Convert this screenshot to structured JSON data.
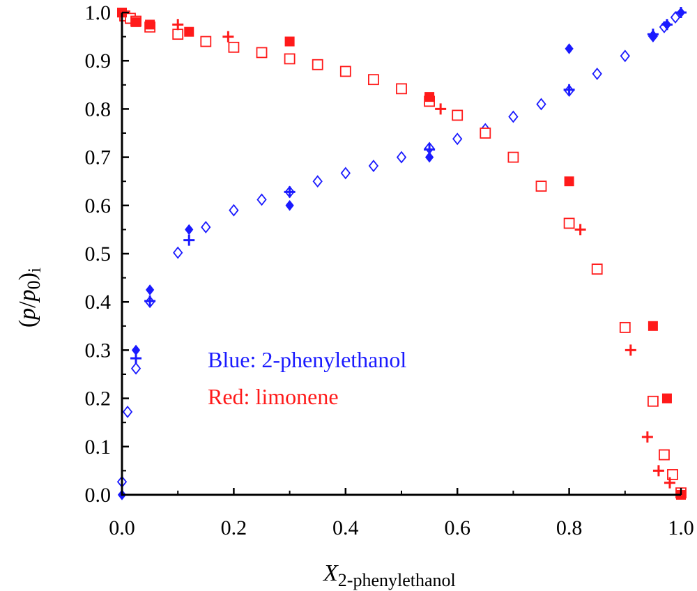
{
  "chart_data": {
    "type": "scatter",
    "xlabel": {
      "main": "X",
      "sub": "2-phenylethanol"
    },
    "ylabel": {
      "pre": "(",
      "p": "p",
      "slash": "/",
      "p0": "p",
      "zero": "0",
      "post": ")",
      "sub": "i"
    },
    "xlim": [
      0,
      1
    ],
    "ylim": [
      0,
      1
    ],
    "xticks": [
      "0.0",
      "0.2",
      "0.4",
      "0.6",
      "0.8",
      "1.0"
    ],
    "yticks": [
      "0.0",
      "0.1",
      "0.2",
      "0.3",
      "0.4",
      "0.5",
      "0.6",
      "0.7",
      "0.8",
      "0.9",
      "1.0"
    ],
    "grid": false,
    "legend": {
      "position": "center-left",
      "entries": [
        {
          "text": "Blue: 2-phenylethanol",
          "color": "#1a1aff"
        },
        {
          "text": "Red: limonene",
          "color": "#ff1a1a"
        }
      ]
    },
    "colors": {
      "blue": "#1a1aff",
      "red": "#ff1a1a",
      "axis": "#000000"
    },
    "series": [
      {
        "component": "2-phenylethanol",
        "color": "#1a1aff",
        "marker": "diamond-open",
        "points": [
          [
            0.0,
            0.027
          ],
          [
            0.01,
            0.172
          ],
          [
            0.025,
            0.262
          ],
          [
            0.05,
            0.4
          ],
          [
            0.1,
            0.502
          ],
          [
            0.15,
            0.555
          ],
          [
            0.2,
            0.59
          ],
          [
            0.25,
            0.612
          ],
          [
            0.3,
            0.628
          ],
          [
            0.35,
            0.65
          ],
          [
            0.4,
            0.667
          ],
          [
            0.45,
            0.682
          ],
          [
            0.5,
            0.7
          ],
          [
            0.55,
            0.719
          ],
          [
            0.6,
            0.738
          ],
          [
            0.65,
            0.758
          ],
          [
            0.7,
            0.784
          ],
          [
            0.75,
            0.81
          ],
          [
            0.8,
            0.838
          ],
          [
            0.85,
            0.873
          ],
          [
            0.9,
            0.91
          ],
          [
            0.95,
            0.951
          ],
          [
            0.97,
            0.97
          ],
          [
            0.99,
            0.99
          ]
        ]
      },
      {
        "component": "2-phenylethanol",
        "color": "#1a1aff",
        "marker": "diamond-filled",
        "points": [
          [
            0.0,
            0.0
          ],
          [
            0.025,
            0.3
          ],
          [
            0.05,
            0.425
          ],
          [
            0.12,
            0.55
          ],
          [
            0.3,
            0.6
          ],
          [
            0.55,
            0.7
          ],
          [
            0.8,
            0.925
          ],
          [
            0.95,
            0.953
          ],
          [
            0.975,
            0.975
          ],
          [
            1.0,
            1.0
          ]
        ]
      },
      {
        "component": "2-phenylethanol",
        "color": "#1a1aff",
        "marker": "cross",
        "points": [
          [
            0.025,
            0.283
          ],
          [
            0.05,
            0.402
          ],
          [
            0.12,
            0.528
          ],
          [
            0.3,
            0.628
          ],
          [
            0.55,
            0.716
          ],
          [
            0.8,
            0.84
          ],
          [
            0.95,
            0.955
          ],
          [
            0.975,
            0.975
          ],
          [
            1.0,
            1.0
          ]
        ]
      },
      {
        "component": "limonene",
        "color": "#ff1a1a",
        "marker": "square-open",
        "points": [
          [
            0.005,
            0.993
          ],
          [
            0.015,
            0.988
          ],
          [
            0.025,
            0.982
          ],
          [
            0.05,
            0.97
          ],
          [
            0.1,
            0.955
          ],
          [
            0.15,
            0.94
          ],
          [
            0.2,
            0.928
          ],
          [
            0.25,
            0.917
          ],
          [
            0.3,
            0.904
          ],
          [
            0.35,
            0.892
          ],
          [
            0.4,
            0.878
          ],
          [
            0.45,
            0.861
          ],
          [
            0.5,
            0.842
          ],
          [
            0.55,
            0.816
          ],
          [
            0.6,
            0.787
          ],
          [
            0.65,
            0.75
          ],
          [
            0.7,
            0.7
          ],
          [
            0.75,
            0.64
          ],
          [
            0.8,
            0.563
          ],
          [
            0.85,
            0.468
          ],
          [
            0.9,
            0.347
          ],
          [
            0.95,
            0.194
          ],
          [
            0.97,
            0.083
          ],
          [
            0.985,
            0.042
          ],
          [
            1.0,
            0.004
          ]
        ]
      },
      {
        "component": "limonene",
        "color": "#ff1a1a",
        "marker": "square-filled",
        "points": [
          [
            0.0,
            1.0
          ],
          [
            0.025,
            0.98
          ],
          [
            0.05,
            0.975
          ],
          [
            0.12,
            0.96
          ],
          [
            0.3,
            0.94
          ],
          [
            0.55,
            0.825
          ],
          [
            0.8,
            0.65
          ],
          [
            0.95,
            0.35
          ],
          [
            0.975,
            0.2
          ],
          [
            1.0,
            0.0
          ]
        ]
      },
      {
        "component": "limonene",
        "color": "#ff1a1a",
        "marker": "cross",
        "points": [
          [
            0.1,
            0.975
          ],
          [
            0.19,
            0.95
          ],
          [
            0.57,
            0.8
          ],
          [
            0.82,
            0.55
          ],
          [
            0.91,
            0.3
          ],
          [
            0.94,
            0.12
          ],
          [
            0.96,
            0.05
          ],
          [
            0.98,
            0.025
          ]
        ]
      }
    ]
  }
}
